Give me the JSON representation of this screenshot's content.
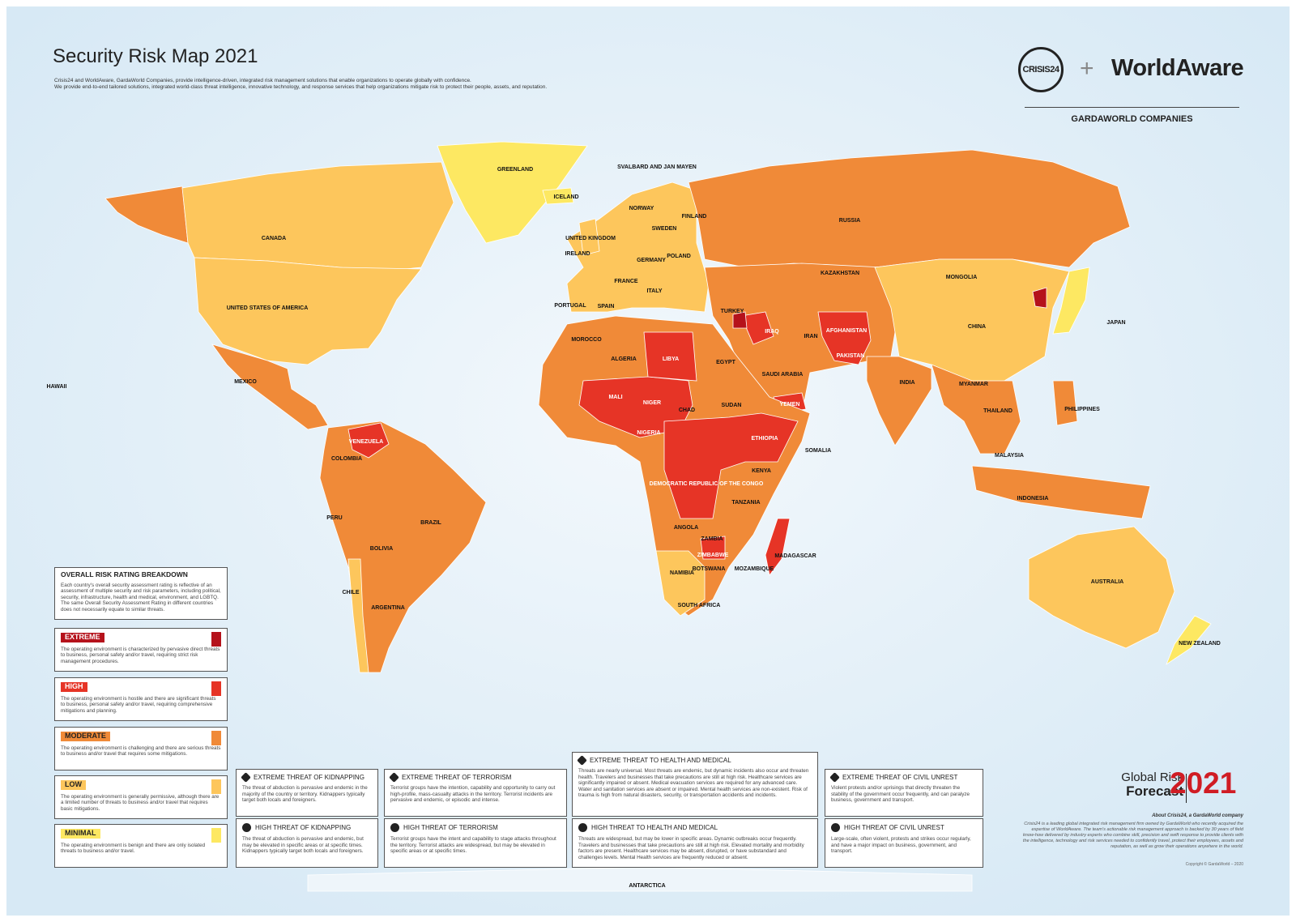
{
  "header": {
    "title": "Security Risk Map 2021",
    "intro": [
      "Crisis24 and WorldAware, GardaWorld Companies, provide intelligence-driven, integrated risk management solutions that enable organizations to operate globally with confidence.",
      "We provide end-to-end tailored solutions, integrated world-class threat intelligence, innovative technology, and response services that help organizations mitigate risk to protect their people, assets, and reputation."
    ]
  },
  "logos": {
    "crisis24": "CRISIS24",
    "plus": "+",
    "worldaware": "WorldAware",
    "tagline": "GARDAWORLD COMPANIES"
  },
  "legend": {
    "heading": "OVERALL RISK RATING BREAKDOWN",
    "description": "Each country's overall security assessment rating is reflective of an assessment of multiple security and risk parameters, including political, security, infrastructure, health and medical, environment, and LGBTQ. The same Overall Security Assessment Rating in different countries does not necessarily equate to similar threats.",
    "levels": [
      {
        "label": "EXTREME",
        "color": "#b5121b",
        "description": "The operating environment is characterized by pervasive direct threats to business, personal safety and/or travel, requiring strict risk management procedures."
      },
      {
        "label": "HIGH",
        "color": "#e63426",
        "description": "The operating environment is hostile and there are significant threats to business, personal safety and/or travel, requiring comprehensive mitigations and planning."
      },
      {
        "label": "MODERATE",
        "color": "#f08a38",
        "description": "The operating environment is challenging and there are serious threats to business and/or travel that requires some mitigations."
      },
      {
        "label": "LOW",
        "color": "#fdc65c",
        "description": "The operating environment is generally permissive, although there are a limited number of threats to business and/or travel that requires basic mitigations."
      },
      {
        "label": "MINIMAL",
        "color": "#fde862",
        "description": "The operating environment is benign and there are only isolated threats to business and/or travel."
      }
    ]
  },
  "threats": [
    {
      "title": "EXTREME THREAT OF KIDNAPPING",
      "description": "The threat of abduction is pervasive and endemic in the majority of the country or territory. Kidnappers typically target both locals and foreigners."
    },
    {
      "title": "EXTREME THREAT OF TERRORISM",
      "description": "Terrorist groups have the intention, capability and opportunity to carry out high-profile, mass-casualty attacks in the territory. Terrorist incidents are pervasive and endemic, or episodic and intense."
    },
    {
      "title": "EXTREME THREAT TO HEALTH AND MEDICAL",
      "description": "Threats are nearly universal. Most threats are endemic, but dynamic incidents also occur and threaten health. Travelers and businesses that take precautions are still at high risk. Healthcare services are significantly impaired or absent. Medical evacuation services are required for any advanced care. Water and sanitation services are absent or impaired. Mental health services are non-existent. Risk of trauma is high from natural disasters, security, or transportation accidents and incidents."
    },
    {
      "title": "EXTREME THREAT OF CIVIL UNREST",
      "description": "Violent protests and/or uprisings that directly threaten the stability of the government occur frequently, and can paralyze business, government and transport."
    },
    {
      "title": "HIGH THREAT OF KIDNAPPING",
      "description": "The threat of abduction is pervasive and endemic, but may be elevated in specific areas or at specific times. Kidnappers typically target both locals and foreigners."
    },
    {
      "title": "HIGH THREAT OF TERRORISM",
      "description": "Terrorist groups have the intent and capability to stage attacks throughout the territory. Terrorist attacks are widespread, but may be elevated in specific areas or at specific times."
    },
    {
      "title": "HIGH THREAT TO HEALTH AND MEDICAL",
      "description": "Threats are widespread, but may be lower in specific areas. Dynamic outbreaks occur frequently. Travelers and businesses that take precautions are still at high risk. Elevated mortality and morbidity factors are present. Healthcare services may be absent, disrupted, or have substandard and challenges levels. Mental Health services are frequently reduced or absent."
    },
    {
      "title": "HIGH THREAT OF CIVIL UNREST",
      "description": "Large-scale, often violent, protests and strikes occur regularly, and have a major impact on business, government, and transport."
    }
  ],
  "forecast": {
    "line1": "Global Risk",
    "line2": "Forecast",
    "year": "2021",
    "about_title": "About Crisis24, a GardaWorld company",
    "about": "Crisis24 is a leading global integrated risk management firm owned by GardaWorld who recently acquired the expertise of WorldAware. The team's actionable risk management approach is backed by 30 years of field know-how delivered by industry experts who combine skill, precision and swift response to provide clients with the intelligence, technology and risk services needed to confidently travel, protect their employees, assets and reputation, as well as grow their operations anywhere in the world.",
    "copyright": "Copyright © GardaWorld – 2020"
  },
  "map_labels": [
    "GREENLAND",
    "ICELAND",
    "SVALBARD AND JAN MAYEN",
    "CANADA",
    "UNITED STATES OF AMERICA",
    "MEXICO",
    "HAWAII",
    "NORWAY",
    "SWEDEN",
    "FINLAND",
    "UNITED KINGDOM",
    "IRELAND",
    "FRANCE",
    "SPAIN",
    "PORTUGAL",
    "ITALY",
    "GERMANY",
    "POLAND",
    "RUSSIA",
    "KAZAKHSTAN",
    "MONGOLIA",
    "CHINA",
    "JAPAN",
    "INDIA",
    "IRAN",
    "TURKEY",
    "IRAQ",
    "AFGHANISTAN",
    "PAKISTAN",
    "SAUDI ARABIA",
    "YEMEN",
    "EGYPT",
    "LIBYA",
    "ALGERIA",
    "MOROCCO",
    "MALI",
    "NIGER",
    "CHAD",
    "SUDAN",
    "ETHIOPIA",
    "SOMALIA",
    "NIGERIA",
    "DEMOCRATIC REPUBLIC OF THE CONGO",
    "KENYA",
    "TANZANIA",
    "ANGOLA",
    "ZAMBIA",
    "ZIMBABWE",
    "MOZAMBIQUE",
    "MADAGASCAR",
    "NAMIBIA",
    "BOTSWANA",
    "SOUTH AFRICA",
    "VENEZUELA",
    "COLOMBIA",
    "BRAZIL",
    "PERU",
    "BOLIVIA",
    "ARGENTINA",
    "CHILE",
    "AUSTRALIA",
    "NEW ZEALAND",
    "INDONESIA",
    "PHILIPPINES",
    "THAILAND",
    "MYANMAR",
    "MALAYSIA",
    "ANTARCTICA"
  ]
}
